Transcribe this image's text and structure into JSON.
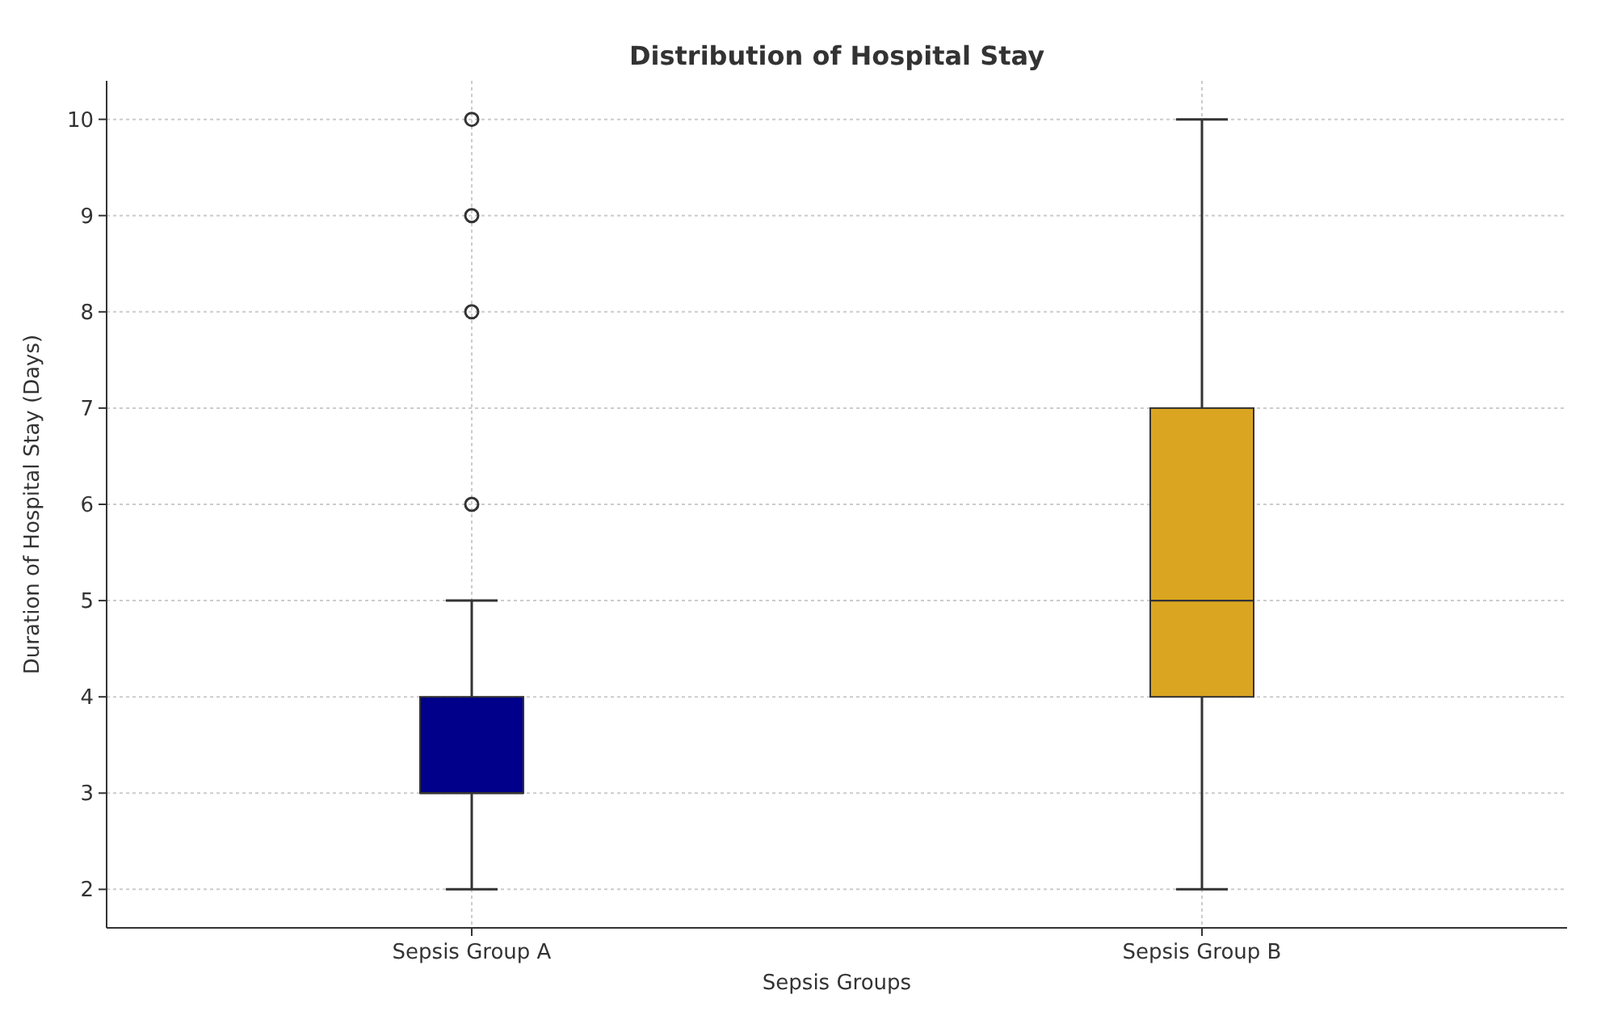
{
  "chart_data": {
    "type": "box",
    "title": "Distribution of Hospital Stay",
    "xlabel": "Sepsis Groups",
    "ylabel": "Duration of Hospital Stay (Days)",
    "categories": [
      "Sepsis Group A",
      "Sepsis Group B"
    ],
    "colors": [
      "#00008b",
      "#daa520"
    ],
    "boxes": [
      {
        "low": 2,
        "q1": 3,
        "median": 3,
        "q3": 4,
        "high": 5,
        "outliers": [
          6,
          8,
          9,
          10
        ]
      },
      {
        "low": 2,
        "q1": 4,
        "median": 5,
        "q3": 7,
        "high": 10
      }
    ],
    "ylim": [
      1.6,
      10.4
    ],
    "yticks": [
      2,
      3,
      4,
      5,
      6,
      7,
      8,
      9,
      10
    ],
    "grid": true
  }
}
